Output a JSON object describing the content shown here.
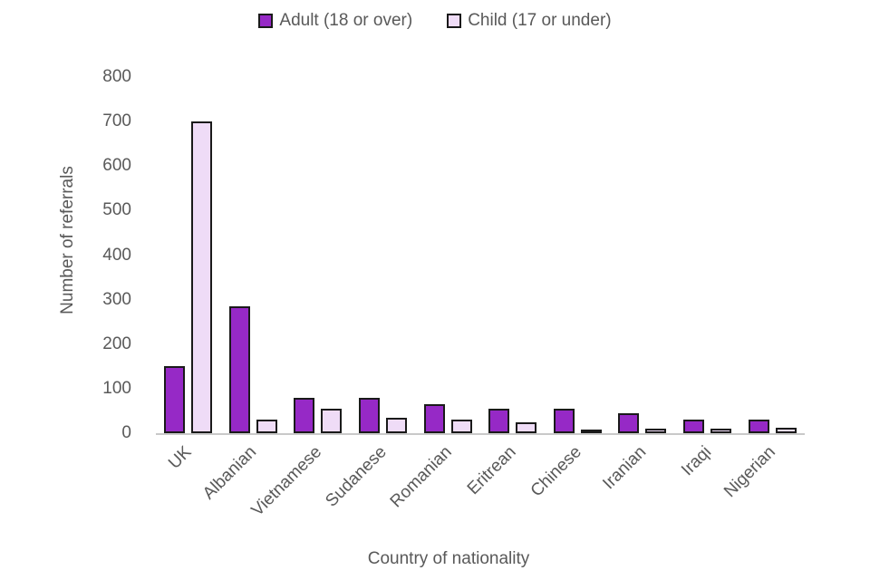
{
  "chart_data": {
    "type": "bar",
    "title": "",
    "categories": [
      "UK",
      "Albanian",
      "Vietnamese",
      "Sudanese",
      "Romanian",
      "Eritrean",
      "Chinese",
      "Iranian",
      "Iraqi",
      "Nigerian"
    ],
    "series": [
      {
        "name": "Adult (18 or over)",
        "color": "#9629C6",
        "values": [
          150,
          285,
          80,
          80,
          65,
          55,
          55,
          45,
          30,
          30
        ]
      },
      {
        "name": "Child (17 or under)",
        "color": "#EFDCF7",
        "values": [
          700,
          30,
          55,
          35,
          30,
          25,
          5,
          10,
          10,
          13
        ]
      }
    ],
    "xlabel": "Country of nationality",
    "ylabel": "Number of referrals",
    "ylim": [
      0,
      800
    ],
    "ytick_step": 100,
    "yticks": [
      0,
      100,
      200,
      300,
      400,
      500,
      600,
      700,
      800
    ],
    "grid": false,
    "legend_position": "top-center",
    "styles": {
      "bar_border": "#1a1a1a",
      "axis_text": "#595959",
      "axis_line": "#c9c9c9",
      "background": "#ffffff"
    }
  }
}
